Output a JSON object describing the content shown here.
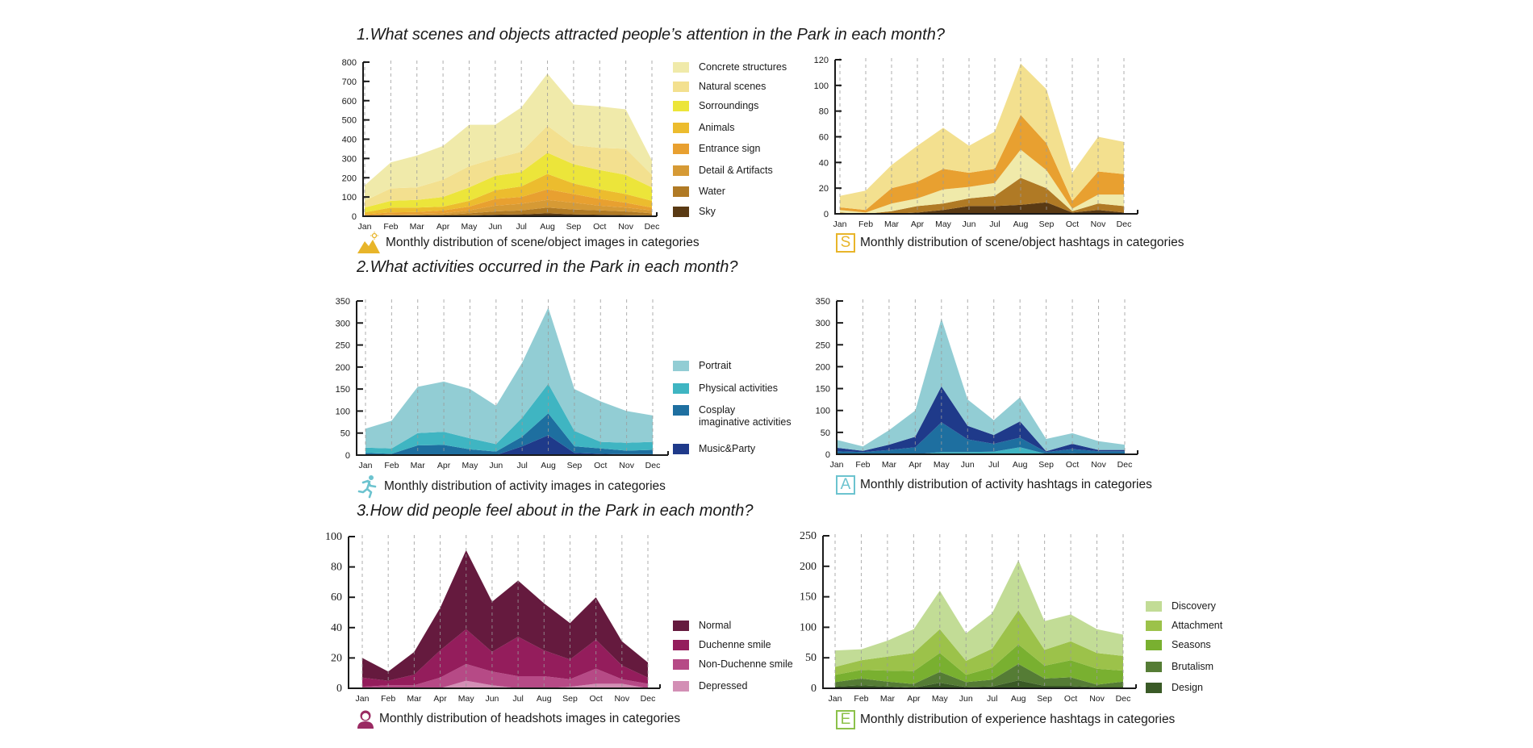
{
  "sections": [
    {
      "title": "1.What scenes and objects attracted people’s attention in the Park in each month?"
    },
    {
      "title": "2.What activities occurred in the Park in each month?"
    },
    {
      "title": "3.How did people feel about in the Park in each month?"
    }
  ],
  "captions": {
    "scene_images": {
      "icon": "mountain-sun-icon",
      "text": "Monthly distribution of scene/object images in categories"
    },
    "scene_hashtags": {
      "icon": "letter-s-icon",
      "letter": "S",
      "text": "Monthly distribution of scene/object hashtags in categories"
    },
    "activity_images": {
      "icon": "runner-icon",
      "text": "Monthly distribution of activity images in categories"
    },
    "activity_hashtags": {
      "icon": "letter-a-icon",
      "letter": "A",
      "text": "Monthly distribution of activity hashtags in categories"
    },
    "headshot_images": {
      "icon": "person-icon",
      "text": "Monthly distribution of headshots images in categories"
    },
    "experience_hashtags": {
      "icon": "letter-e-icon",
      "letter": "E",
      "text": "Monthly distribution of experience hashtags in categories"
    }
  },
  "colors": {
    "scene_accent": "#e8b52a",
    "scene_hashtag_accent": "#e8b52a",
    "activity_accent": "#6cc3cf",
    "headshot_accent": "#9a2a62",
    "experience_accent": "#8cc14a"
  },
  "chart_data": [
    {
      "id": "scene_images",
      "type": "area",
      "stacked": true,
      "title": "Monthly distribution of scene/object images in categories",
      "categories": [
        "Jan",
        "Feb",
        "Mar",
        "Apr",
        "May",
        "Jun",
        "Jul",
        "Aug",
        "Sep",
        "Oct",
        "Nov",
        "Dec"
      ],
      "ylim": [
        0,
        800
      ],
      "yticks": [
        0,
        100,
        200,
        300,
        400,
        500,
        600,
        700,
        800
      ],
      "grid": "vertical-dashed",
      "legend": "right",
      "series": [
        {
          "name": "Sky",
          "color": "#5a3a14",
          "values": [
            0,
            1,
            1,
            2,
            4,
            8,
            10,
            15,
            10,
            8,
            6,
            4
          ]
        },
        {
          "name": "Water",
          "color": "#b07a25",
          "values": [
            2,
            4,
            4,
            6,
            11,
            17,
            20,
            30,
            25,
            22,
            19,
            11
          ]
        },
        {
          "name": "Detail & Artifacts",
          "color": "#d69a35",
          "values": [
            3,
            5,
            7,
            7,
            15,
            30,
            35,
            40,
            35,
            25,
            20,
            15
          ]
        },
        {
          "name": "Entrance sign",
          "color": "#e8a030",
          "values": [
            5,
            10,
            10,
            15,
            20,
            35,
            35,
            55,
            45,
            35,
            25,
            15
          ]
        },
        {
          "name": "Animals",
          "color": "#ecbc2e",
          "values": [
            10,
            25,
            23,
            20,
            30,
            45,
            55,
            80,
            55,
            50,
            45,
            35
          ]
        },
        {
          "name": "Sorroundings",
          "color": "#ece53a",
          "values": [
            25,
            35,
            40,
            50,
            70,
            75,
            75,
            110,
            100,
            100,
            100,
            70
          ]
        },
        {
          "name": "Natural scenes",
          "color": "#f3e08f",
          "values": [
            35,
            65,
            65,
            90,
            110,
            90,
            105,
            140,
            100,
            115,
            135,
            65
          ]
        },
        {
          "name": "Concrete structures",
          "color": "#f0eaaa",
          "values": [
            80,
            135,
            165,
            175,
            215,
            175,
            230,
            270,
            210,
            215,
            205,
            75
          ]
        }
      ]
    },
    {
      "id": "scene_hashtags",
      "type": "area",
      "stacked": true,
      "title": "Monthly distribution of scene/object hashtags in categories",
      "categories": [
        "Jan",
        "Feb",
        "Mar",
        "Apr",
        "May",
        "Jun",
        "Jul",
        "Aug",
        "Sep",
        "Oct",
        "Nov",
        "Dec"
      ],
      "ylim": [
        0,
        120
      ],
      "yticks": [
        0,
        20,
        40,
        60,
        80,
        100,
        120
      ],
      "grid": "vertical-dashed",
      "legend": "none",
      "series": [
        {
          "name": "Sky",
          "color": "#5a3a14",
          "values": [
            0,
            0,
            0,
            1,
            3,
            6,
            6,
            7,
            9,
            1,
            3,
            1
          ]
        },
        {
          "name": "Water",
          "color": "#b07a25",
          "values": [
            1,
            0,
            2,
            5,
            5,
            6,
            8,
            21,
            11,
            1,
            5,
            5
          ]
        },
        {
          "name": "Concrete structures",
          "color": "#f0eaaa",
          "values": [
            2,
            1,
            6,
            6,
            11,
            9,
            10,
            22,
            14,
            2,
            7,
            9
          ]
        },
        {
          "name": "Entrance sign",
          "color": "#e8a030",
          "values": [
            2,
            2,
            12,
            13,
            16,
            11,
            11,
            27,
            21,
            6,
            18,
            16
          ]
        },
        {
          "name": "Natural scenes",
          "color": "#f3e08f",
          "values": [
            9,
            15,
            18,
            28,
            32,
            21,
            29,
            40,
            42,
            22,
            27,
            25
          ]
        }
      ]
    },
    {
      "id": "activity_images",
      "type": "area",
      "stacked": true,
      "title": "Monthly distribution of activity images in categories",
      "categories": [
        "Jan",
        "Feb",
        "Mar",
        "Apr",
        "May",
        "Jun",
        "Jul",
        "Aug",
        "Sep",
        "Oct",
        "Nov",
        "Dec"
      ],
      "ylim": [
        0,
        350
      ],
      "yticks": [
        0,
        50,
        100,
        150,
        200,
        250,
        300,
        350
      ],
      "grid": "vertical-dashed",
      "legend": "right",
      "series": [
        {
          "name": "Music&Party",
          "color": "#1f3a8a",
          "values": [
            0,
            0,
            0,
            0,
            0,
            0,
            20,
            45,
            5,
            3,
            2,
            2
          ]
        },
        {
          "name": "Cosplay imaginative activities",
          "color": "#1e6fa0",
          "values": [
            5,
            3,
            22,
            23,
            13,
            8,
            22,
            50,
            15,
            12,
            8,
            10
          ]
        },
        {
          "name": "Physical activities",
          "color": "#3fb5c2",
          "values": [
            12,
            12,
            28,
            30,
            25,
            17,
            43,
            67,
            35,
            15,
            18,
            18
          ]
        },
        {
          "name": "Portrait",
          "color": "#92cdd4",
          "values": [
            43,
            63,
            105,
            114,
            112,
            87,
            125,
            173,
            95,
            92,
            72,
            60
          ]
        }
      ]
    },
    {
      "id": "activity_hashtags",
      "type": "area",
      "stacked": true,
      "title": "Monthly distribution of activity hashtags in categories",
      "categories": [
        "Jan",
        "Feb",
        "Mar",
        "Apr",
        "May",
        "Jun",
        "Jul",
        "Aug",
        "Sep",
        "Oct",
        "Nov",
        "Dec"
      ],
      "ylim": [
        0,
        350
      ],
      "yticks": [
        0,
        50,
        100,
        150,
        200,
        250,
        300,
        350
      ],
      "grid": "vertical-dashed",
      "legend": "none",
      "series": [
        {
          "name": "Physical activities",
          "color": "#3fb5c2",
          "values": [
            0,
            0,
            0,
            0,
            5,
            5,
            6,
            16,
            1,
            2,
            1,
            1
          ]
        },
        {
          "name": "Cosplay imaginative activities",
          "color": "#1e6fa0",
          "values": [
            7,
            5,
            10,
            16,
            68,
            29,
            18,
            22,
            4,
            10,
            6,
            6
          ]
        },
        {
          "name": "Music&Party",
          "color": "#1f3a8a",
          "values": [
            8,
            3,
            12,
            24,
            82,
            31,
            20,
            37,
            2,
            12,
            3,
            3
          ]
        },
        {
          "name": "Portrait",
          "color": "#92cdd4",
          "values": [
            18,
            10,
            33,
            60,
            155,
            60,
            34,
            55,
            28,
            24,
            20,
            12
          ]
        }
      ]
    },
    {
      "id": "headshot_images",
      "type": "area",
      "stacked": true,
      "title": "Monthly distribution of headshots images in categories",
      "categories": [
        "Jan",
        "Feb",
        "Mar",
        "Apr",
        "May",
        "Jun",
        "Jul",
        "Aug",
        "Sep",
        "Oct",
        "Nov",
        "Dec"
      ],
      "ylim": [
        0,
        100
      ],
      "yticks": [
        0,
        20,
        40,
        60,
        80,
        100
      ],
      "grid": "vertical-dashed",
      "legend": "right",
      "series": [
        {
          "name": "Depressed",
          "color": "#d38fb5",
          "values": [
            0,
            0,
            0,
            0,
            5,
            2,
            0,
            0,
            1,
            3,
            3,
            0
          ]
        },
        {
          "name": "Non-Duchenne smile",
          "color": "#b64a86",
          "values": [
            1,
            2,
            2,
            7,
            11,
            9,
            8,
            8,
            5,
            10,
            3,
            3
          ]
        },
        {
          "name": "Duchenne smile",
          "color": "#941d5c",
          "values": [
            6,
            3,
            7,
            18,
            23,
            13,
            26,
            17,
            13,
            19,
            9,
            4
          ]
        },
        {
          "name": "Normal",
          "color": "#651a3e",
          "values": [
            13,
            6,
            15,
            28,
            52,
            33,
            37,
            31,
            24,
            28,
            16,
            10
          ]
        }
      ]
    },
    {
      "id": "experience_hashtags",
      "type": "area",
      "stacked": true,
      "title": "Monthly distribution of experience hashtags in categories",
      "categories": [
        "Jan",
        "Feb",
        "Mar",
        "Apr",
        "May",
        "Jun",
        "Jul",
        "Aug",
        "Sep",
        "Oct",
        "Nov",
        "Dec"
      ],
      "ylim": [
        0,
        250
      ],
      "yticks": [
        0,
        50,
        100,
        150,
        200,
        250
      ],
      "grid": "vertical-dashed",
      "legend": "right",
      "series": [
        {
          "name": "Design",
          "color": "#3a5a26",
          "values": [
            3,
            5,
            3,
            1,
            9,
            2,
            3,
            13,
            4,
            4,
            2,
            2
          ]
        },
        {
          "name": "Brutalism",
          "color": "#557c35",
          "values": [
            7,
            11,
            8,
            6,
            18,
            8,
            11,
            27,
            12,
            14,
            4,
            9
          ]
        },
        {
          "name": "Seasons",
          "color": "#79b030",
          "values": [
            12,
            14,
            18,
            21,
            31,
            12,
            20,
            32,
            21,
            28,
            26,
            18
          ]
        },
        {
          "name": "Attachment",
          "color": "#9cc24a",
          "values": [
            13,
            16,
            23,
            30,
            39,
            23,
            31,
            56,
            26,
            31,
            26,
            24
          ]
        },
        {
          "name": "Discovery",
          "color": "#c2dc96",
          "values": [
            27,
            18,
            26,
            39,
            63,
            45,
            58,
            82,
            47,
            44,
            39,
            35
          ]
        }
      ]
    }
  ],
  "legends": {
    "scene_images": [
      "Concrete structures",
      "Natural scenes",
      "Sorroundings",
      "Animals",
      "Entrance sign",
      "Detail & Artifacts",
      "Water",
      "Sky"
    ],
    "activity_images": [
      "Portrait",
      "Physical activities",
      "Cosplay imaginative activities",
      "Music&Party"
    ],
    "headshot_images": [
      "Normal",
      "Duchenne smile",
      "Non-Duchenne smile",
      "Depressed"
    ],
    "experience_hashtags": [
      "Discovery",
      "Attachment",
      "Seasons",
      "Brutalism",
      "Design"
    ]
  },
  "legend_labels": {
    "scene": [
      {
        "label": "Concrete structures",
        "color": "#f0eaaa"
      },
      {
        "label": "Natural scenes",
        "color": "#f3e08f"
      },
      {
        "label": "Sorroundings",
        "color": "#ece53a"
      },
      {
        "label": "Animals",
        "color": "#ecbc2e"
      },
      {
        "label": "Entrance sign",
        "color": "#e8a030"
      },
      {
        "label": "Detail & Artifacts",
        "color": "#d69a35"
      },
      {
        "label": "Water",
        "color": "#b07a25"
      },
      {
        "label": "Sky",
        "color": "#5a3a14"
      }
    ],
    "activity": [
      {
        "label": "Portrait",
        "color": "#92cdd4"
      },
      {
        "label": "Physical activities",
        "color": "#3fb5c2"
      },
      {
        "label": "Cosplay",
        "label2": "imaginative activities",
        "color": "#1e6fa0"
      },
      {
        "label": "Music&Party",
        "color": "#1f3a8a"
      }
    ],
    "headshot": [
      {
        "label": "Normal",
        "color": "#651a3e"
      },
      {
        "label": "Duchenne smile",
        "color": "#941d5c"
      },
      {
        "label": "Non-Duchenne smile",
        "color": "#b64a86"
      },
      {
        "label": "Depressed",
        "color": "#d38fb5"
      }
    ],
    "experience": [
      {
        "label": "Discovery",
        "color": "#c2dc96"
      },
      {
        "label": "Attachment",
        "color": "#9cc24a"
      },
      {
        "label": "Seasons",
        "color": "#79b030"
      },
      {
        "label": "Brutalism",
        "color": "#557c35"
      },
      {
        "label": "Design",
        "color": "#3a5a26"
      }
    ]
  }
}
